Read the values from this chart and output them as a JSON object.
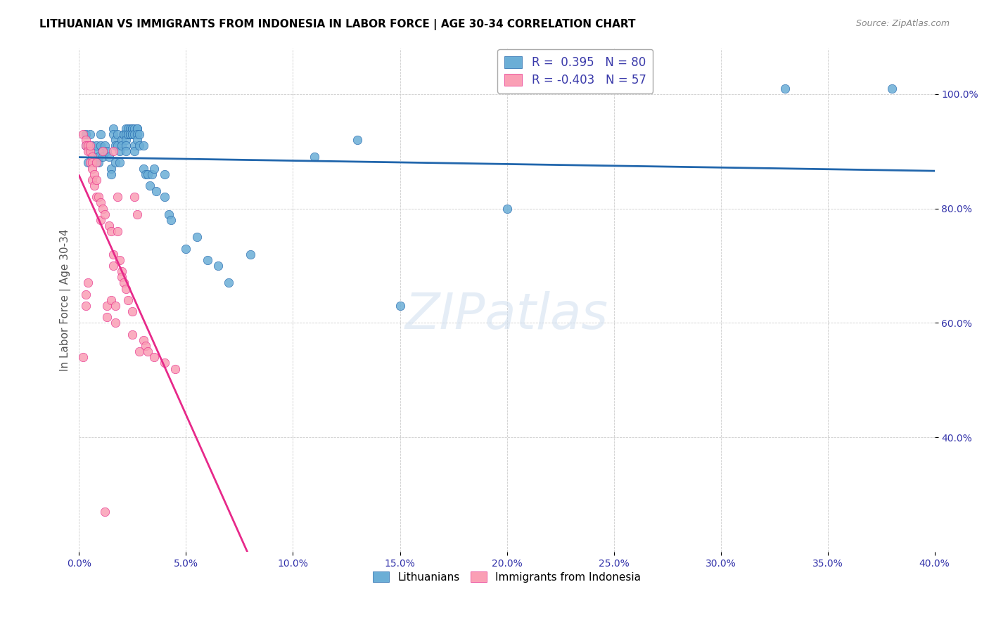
{
  "title": "LITHUANIAN VS IMMIGRANTS FROM INDONESIA IN LABOR FORCE | AGE 30-34 CORRELATION CHART",
  "source": "Source: ZipAtlas.com",
  "ylabel": "In Labor Force | Age 30-34",
  "xlabel": "",
  "xlim": [
    0.0,
    0.4
  ],
  "ylim": [
    0.2,
    1.08
  ],
  "xtick_labels": [
    "0.0%",
    "5.0%",
    "10.0%",
    "15.0%",
    "20.0%",
    "25.0%",
    "30.0%",
    "35.0%",
    "40.0%"
  ],
  "xtick_values": [
    0.0,
    0.05,
    0.1,
    0.15,
    0.2,
    0.25,
    0.3,
    0.35,
    0.4
  ],
  "ytick_labels": [
    "40.0%",
    "60.0%",
    "80.0%",
    "100.0%"
  ],
  "ytick_values": [
    0.4,
    0.6,
    0.8,
    1.0
  ],
  "r_blue": 0.395,
  "n_blue": 80,
  "r_pink": -0.403,
  "n_pink": 57,
  "blue_color": "#6baed6",
  "pink_color": "#fa9fb5",
  "trendline_blue": "#2166ac",
  "trendline_pink": "#e7298a",
  "trendline_ext_color": "#cccccc",
  "legend_r_color": "#3a3aaa",
  "watermark": "ZIPatlas",
  "blue_scatter": [
    [
      0.003,
      0.93
    ],
    [
      0.003,
      0.91
    ],
    [
      0.004,
      0.88
    ],
    [
      0.005,
      0.93
    ],
    [
      0.006,
      0.91
    ],
    [
      0.007,
      0.9
    ],
    [
      0.008,
      0.91
    ],
    [
      0.009,
      0.89
    ],
    [
      0.009,
      0.88
    ],
    [
      0.01,
      0.93
    ],
    [
      0.01,
      0.91
    ],
    [
      0.011,
      0.9
    ],
    [
      0.011,
      0.89
    ],
    [
      0.012,
      0.91
    ],
    [
      0.013,
      0.9
    ],
    [
      0.014,
      0.89
    ],
    [
      0.015,
      0.87
    ],
    [
      0.015,
      0.86
    ],
    [
      0.016,
      0.94
    ],
    [
      0.016,
      0.93
    ],
    [
      0.017,
      0.92
    ],
    [
      0.017,
      0.91
    ],
    [
      0.017,
      0.88
    ],
    [
      0.018,
      0.93
    ],
    [
      0.018,
      0.91
    ],
    [
      0.019,
      0.9
    ],
    [
      0.019,
      0.88
    ],
    [
      0.02,
      0.92
    ],
    [
      0.02,
      0.91
    ],
    [
      0.021,
      0.93
    ],
    [
      0.021,
      0.93
    ],
    [
      0.022,
      0.94
    ],
    [
      0.022,
      0.93
    ],
    [
      0.022,
      0.92
    ],
    [
      0.022,
      0.91
    ],
    [
      0.022,
      0.9
    ],
    [
      0.023,
      0.94
    ],
    [
      0.023,
      0.93
    ],
    [
      0.023,
      0.93
    ],
    [
      0.024,
      0.94
    ],
    [
      0.024,
      0.93
    ],
    [
      0.024,
      0.93
    ],
    [
      0.025,
      0.94
    ],
    [
      0.025,
      0.94
    ],
    [
      0.025,
      0.93
    ],
    [
      0.025,
      0.93
    ],
    [
      0.026,
      0.94
    ],
    [
      0.026,
      0.93
    ],
    [
      0.026,
      0.91
    ],
    [
      0.026,
      0.9
    ],
    [
      0.027,
      0.94
    ],
    [
      0.027,
      0.94
    ],
    [
      0.027,
      0.93
    ],
    [
      0.027,
      0.92
    ],
    [
      0.028,
      0.93
    ],
    [
      0.028,
      0.91
    ],
    [
      0.03,
      0.91
    ],
    [
      0.03,
      0.87
    ],
    [
      0.031,
      0.86
    ],
    [
      0.032,
      0.86
    ],
    [
      0.033,
      0.84
    ],
    [
      0.034,
      0.86
    ],
    [
      0.035,
      0.87
    ],
    [
      0.036,
      0.83
    ],
    [
      0.04,
      0.86
    ],
    [
      0.04,
      0.82
    ],
    [
      0.042,
      0.79
    ],
    [
      0.043,
      0.78
    ],
    [
      0.05,
      0.73
    ],
    [
      0.055,
      0.75
    ],
    [
      0.06,
      0.71
    ],
    [
      0.065,
      0.7
    ],
    [
      0.07,
      0.67
    ],
    [
      0.08,
      0.72
    ],
    [
      0.11,
      0.89
    ],
    [
      0.13,
      0.92
    ],
    [
      0.15,
      0.63
    ],
    [
      0.2,
      0.8
    ],
    [
      0.33,
      1.01
    ],
    [
      0.38,
      1.01
    ]
  ],
  "pink_scatter": [
    [
      0.002,
      0.93
    ],
    [
      0.003,
      0.92
    ],
    [
      0.003,
      0.91
    ],
    [
      0.004,
      0.91
    ],
    [
      0.004,
      0.9
    ],
    [
      0.005,
      0.9
    ],
    [
      0.005,
      0.88
    ],
    [
      0.006,
      0.89
    ],
    [
      0.006,
      0.88
    ],
    [
      0.006,
      0.87
    ],
    [
      0.006,
      0.85
    ],
    [
      0.007,
      0.86
    ],
    [
      0.007,
      0.84
    ],
    [
      0.008,
      0.88
    ],
    [
      0.008,
      0.85
    ],
    [
      0.008,
      0.82
    ],
    [
      0.009,
      0.82
    ],
    [
      0.01,
      0.81
    ],
    [
      0.01,
      0.78
    ],
    [
      0.011,
      0.9
    ],
    [
      0.011,
      0.8
    ],
    [
      0.012,
      0.79
    ],
    [
      0.013,
      0.63
    ],
    [
      0.013,
      0.61
    ],
    [
      0.014,
      0.77
    ],
    [
      0.015,
      0.76
    ],
    [
      0.015,
      0.64
    ],
    [
      0.016,
      0.9
    ],
    [
      0.016,
      0.72
    ],
    [
      0.016,
      0.7
    ],
    [
      0.017,
      0.63
    ],
    [
      0.017,
      0.6
    ],
    [
      0.018,
      0.82
    ],
    [
      0.018,
      0.76
    ],
    [
      0.019,
      0.71
    ],
    [
      0.02,
      0.69
    ],
    [
      0.02,
      0.68
    ],
    [
      0.021,
      0.67
    ],
    [
      0.022,
      0.66
    ],
    [
      0.023,
      0.64
    ],
    [
      0.025,
      0.62
    ],
    [
      0.025,
      0.58
    ],
    [
      0.026,
      0.82
    ],
    [
      0.027,
      0.79
    ],
    [
      0.028,
      0.55
    ],
    [
      0.03,
      0.57
    ],
    [
      0.031,
      0.56
    ],
    [
      0.032,
      0.55
    ],
    [
      0.035,
      0.54
    ],
    [
      0.04,
      0.53
    ],
    [
      0.045,
      0.52
    ],
    [
      0.002,
      0.54
    ],
    [
      0.003,
      0.63
    ],
    [
      0.003,
      0.65
    ],
    [
      0.004,
      0.67
    ],
    [
      0.012,
      0.27
    ],
    [
      0.005,
      0.91
    ]
  ]
}
